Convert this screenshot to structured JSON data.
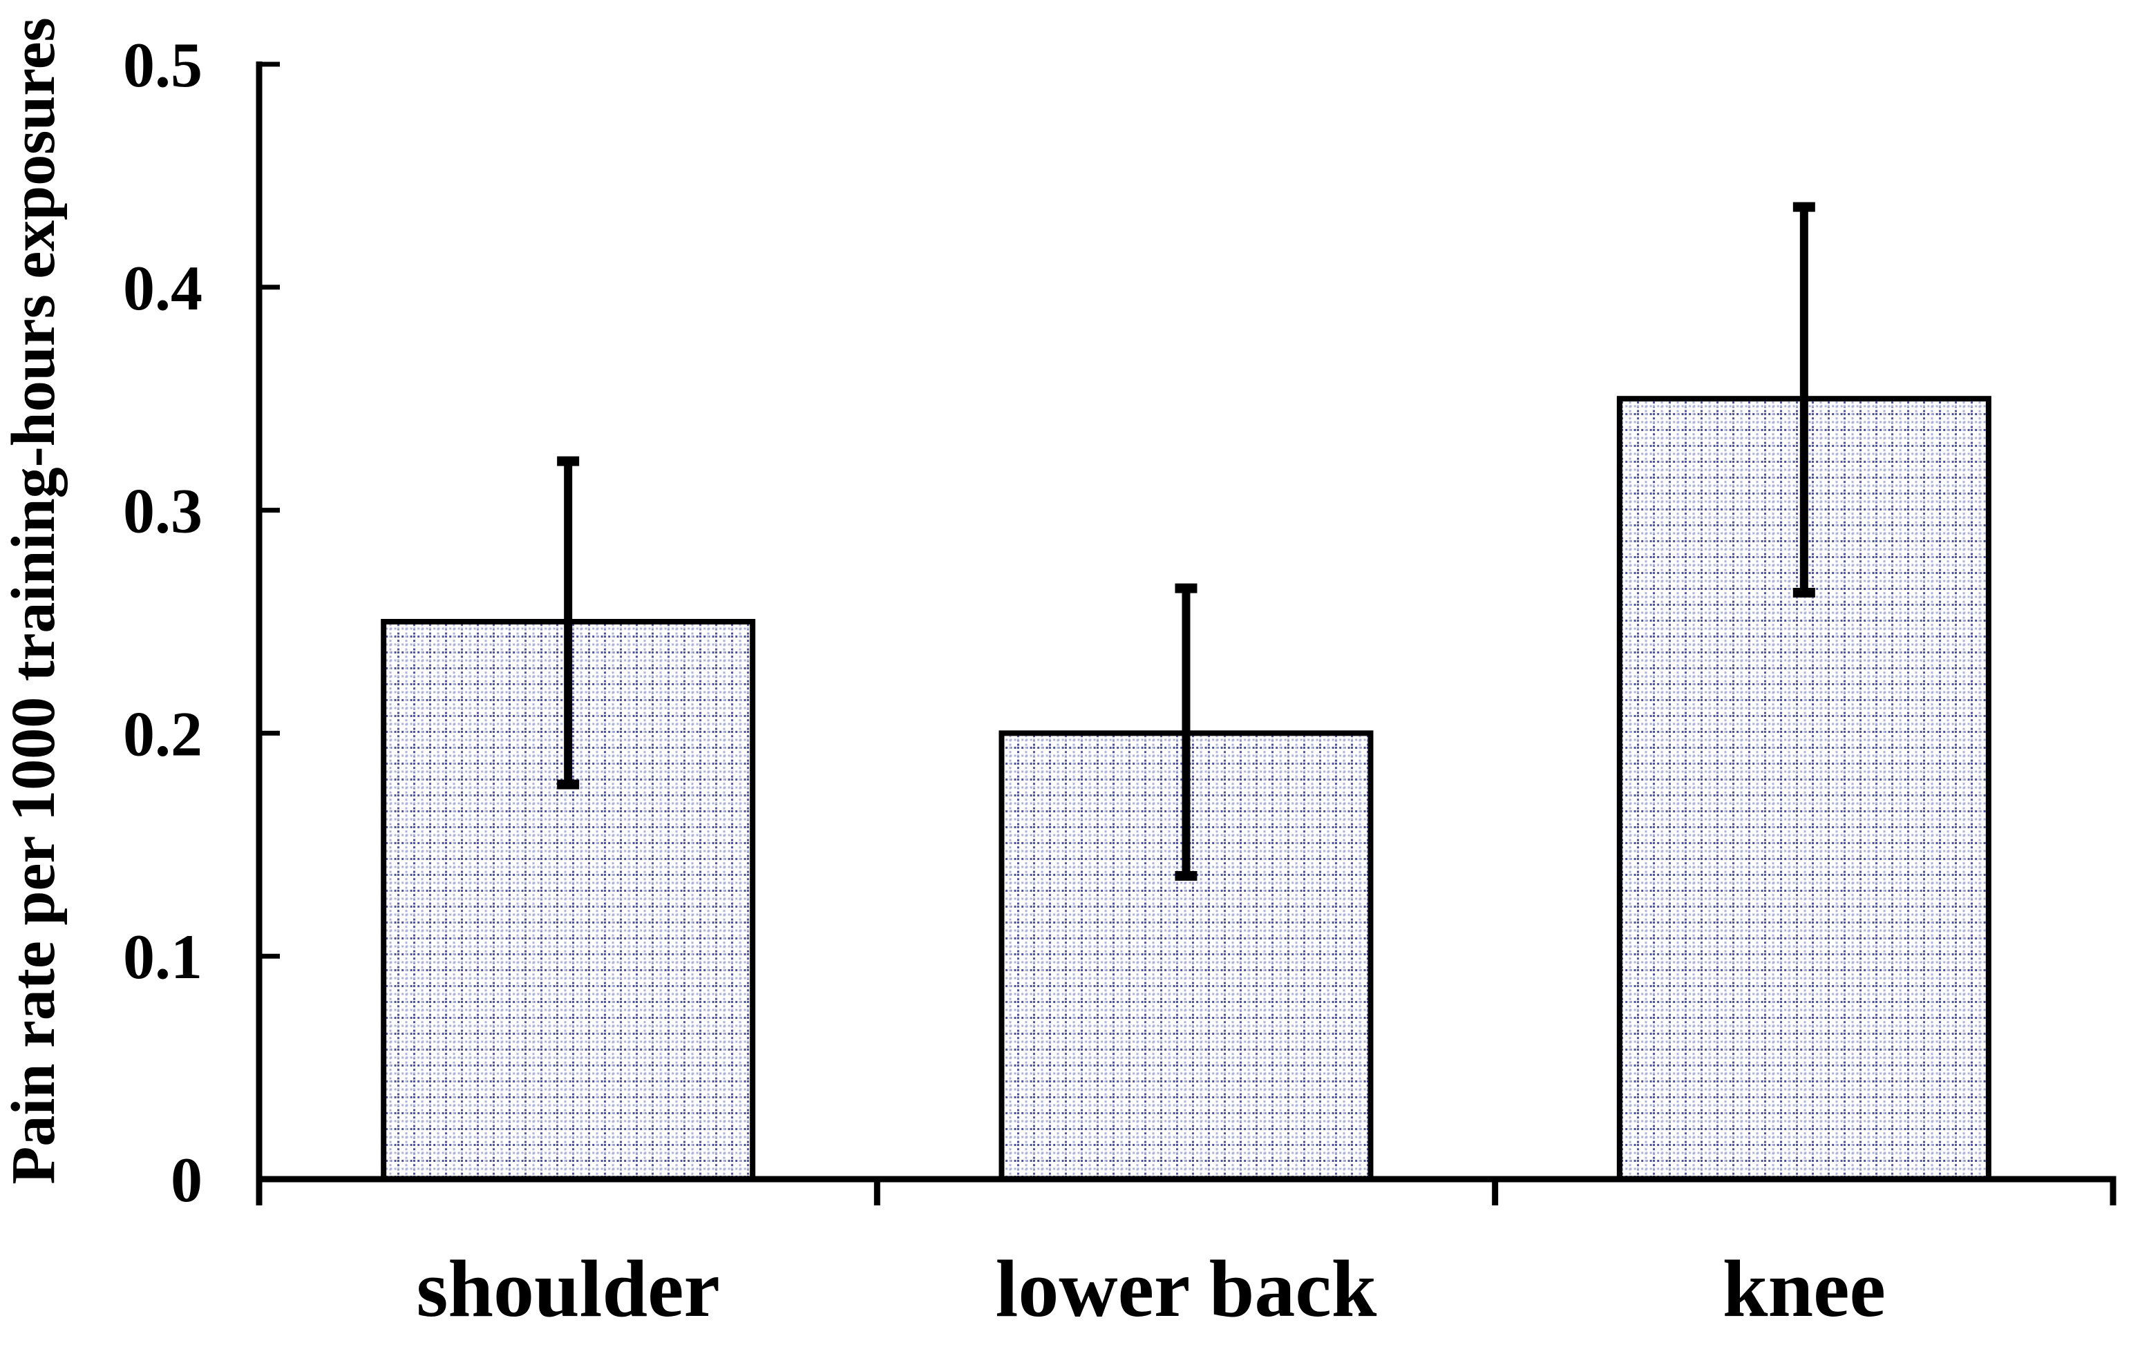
{
  "chart_data": {
    "type": "bar",
    "title": "",
    "ylabel": "Pain rate per 1000 training-hours exposures",
    "xlabel": "",
    "categories": [
      "shoulder",
      "lower back",
      "knee"
    ],
    "series": [
      {
        "name": "pain rate",
        "values": [
          0.25,
          0.2,
          0.35
        ],
        "error_low": [
          0.177,
          0.136,
          0.263
        ],
        "error_high": [
          0.322,
          0.265,
          0.436
        ]
      }
    ],
    "ylim": [
      0,
      0.5
    ],
    "yticks": [
      0,
      0.1,
      0.2,
      0.3,
      0.4,
      0.5
    ],
    "ytick_labels": [
      "0",
      "0.1",
      "0.2",
      "0.3",
      "0.4",
      "0.5"
    ],
    "grid": false,
    "legend": false,
    "bar_style": {
      "fill_pattern": "dotted-grid",
      "pattern_color_strong": "#4a4fc0",
      "pattern_color_light": "#aab0e2",
      "pattern_background": "#ffffff",
      "border_color": "#000000"
    },
    "error_bar_color": "#000000",
    "axis_color": "#000000"
  }
}
